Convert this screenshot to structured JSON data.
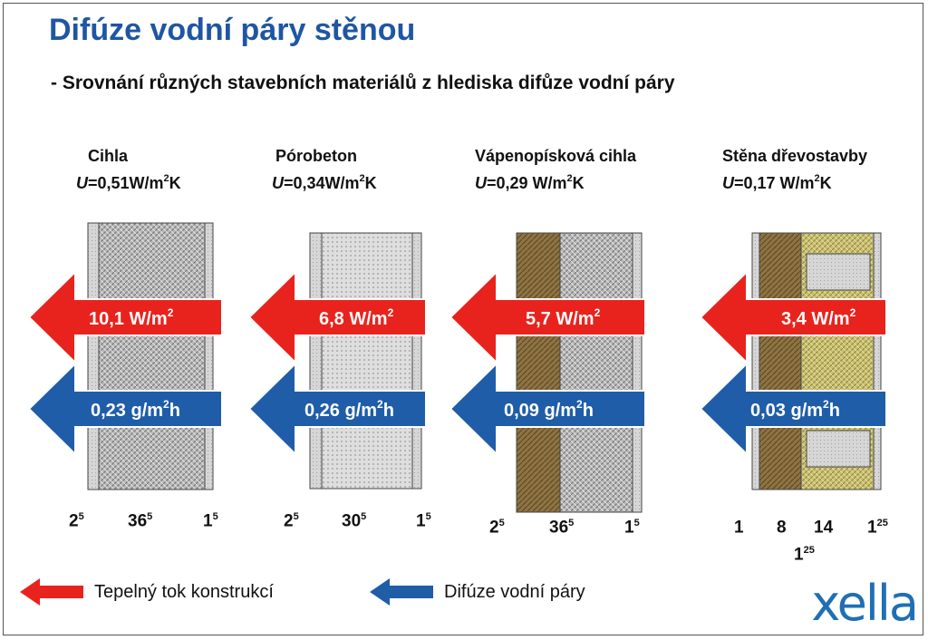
{
  "title": "Difúze vodní páry stěnou",
  "subtitle": "- Srovnání různých stavebních materiálů z hlediska difůze vodní páry",
  "materials": [
    {
      "name": "Cihla",
      "u_label": "U",
      "u_value": "=0,51W/m",
      "u_sup": "2",
      "u_unit": "K",
      "heat": "10,1 W/m",
      "heat_sup": "2",
      "vapor": "0,23 g/m",
      "vapor_sup": "2",
      "vapor_end": "h",
      "dims": [
        {
          "base": "2",
          "sup": "5"
        },
        {
          "base": "36",
          "sup": "5"
        },
        {
          "base": "1",
          "sup": "5"
        }
      ]
    },
    {
      "name": "Pórobeton",
      "u_label": "U",
      "u_value": "=0,34W/m",
      "u_sup": "2",
      "u_unit": "K",
      "heat": "6,8 W/m",
      "heat_sup": "2",
      "vapor": "0,26 g/m",
      "vapor_sup": "2",
      "vapor_end": "h",
      "dims": [
        {
          "base": "2",
          "sup": "5"
        },
        {
          "base": "30",
          "sup": "5"
        },
        {
          "base": "1",
          "sup": "5"
        }
      ]
    },
    {
      "name": "Vápenopísková cihla",
      "u_label": "U",
      "u_value": "=0,29 W/m",
      "u_sup": "2",
      "u_unit": "K",
      "heat": "5,7 W/m",
      "heat_sup": "2",
      "vapor": "0,09 g/m",
      "vapor_sup": "2",
      "vapor_end": "h",
      "dims": [
        {
          "base": "2",
          "sup": "5"
        },
        {
          "base": "36",
          "sup": "5"
        },
        {
          "base": "1",
          "sup": "5"
        }
      ]
    },
    {
      "name": "Stěna dřevostavby",
      "u_label": "U",
      "u_value": "=0,17 W/m",
      "u_sup": "2",
      "u_unit": "K",
      "heat": "3,4 W/m",
      "heat_sup": "2",
      "vapor": "0,03 g/m",
      "vapor_sup": "2",
      "vapor_end": "h",
      "dims": [
        {
          "base": "1",
          "sup": ""
        },
        {
          "base": "8",
          "sup": ""
        },
        {
          "base": "14",
          "sup": ""
        },
        {
          "base": "1",
          "sup": "25"
        },
        {
          "base": "1",
          "sup": "25"
        }
      ]
    }
  ],
  "legend": {
    "heat": "Tepelný tok konstrukcí",
    "vapor": "Difúze vodní páry"
  },
  "colors": {
    "title": "#1f56a3",
    "heat_arrow": "#e8231d",
    "vapor_arrow": "#1f5da8",
    "logo": "#1f6fb5"
  },
  "logo": "xella"
}
